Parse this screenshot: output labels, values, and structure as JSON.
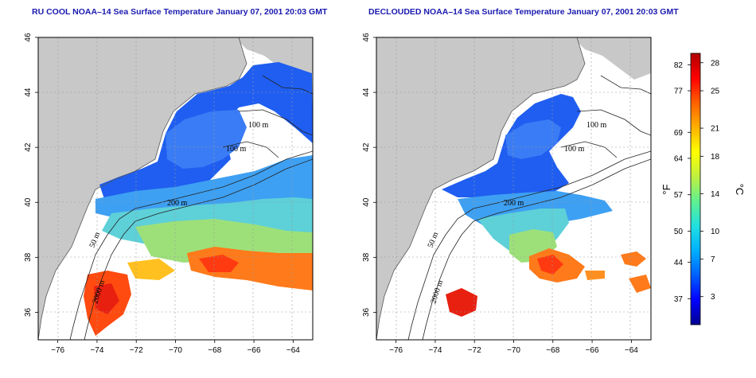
{
  "panels": [
    {
      "id": "left",
      "title": "RU COOL NOAA–14 Sea Surface Temperature January 07, 2001 20:03 GMT",
      "contour_labels": [
        "100 m",
        "100 m",
        "200 m",
        "50 m",
        "2000 m"
      ]
    },
    {
      "id": "right",
      "title": "DECLOUDED NOAA–14 Sea Surface Temperature January 07, 2001 20:03 GMT",
      "contour_labels": [
        "100 m",
        "100 m",
        "200 m",
        "50 m",
        "2000 m"
      ]
    }
  ],
  "axes": {
    "x_ticks": [
      "−76",
      "−74",
      "−72",
      "−70",
      "−68",
      "−66",
      "−64"
    ],
    "y_ticks": [
      "36",
      "38",
      "40",
      "42",
      "44",
      "46"
    ],
    "x_range": [
      -77,
      -63
    ],
    "y_range": [
      35,
      46
    ]
  },
  "colorbar": {
    "fahrenheit_label": "°F",
    "celsius_label": "°C",
    "fahrenheit_ticks": [
      "82",
      "77",
      "69",
      "64",
      "57",
      "50",
      "44",
      "37"
    ],
    "celsius_ticks": [
      "28",
      "25",
      "21",
      "18",
      "14",
      "10",
      "7",
      "3"
    ],
    "range_c": [
      0,
      29
    ],
    "stops": [
      "#000090",
      "#0000ff",
      "#0060ff",
      "#00b0ff",
      "#20e0e0",
      "#60f090",
      "#c0f040",
      "#ffff00",
      "#ffb000",
      "#ff6000",
      "#ff0000",
      "#b00000"
    ]
  },
  "colors": {
    "land": "#c8c8c8",
    "nodata": "#ffffff",
    "grid": "#999999"
  }
}
